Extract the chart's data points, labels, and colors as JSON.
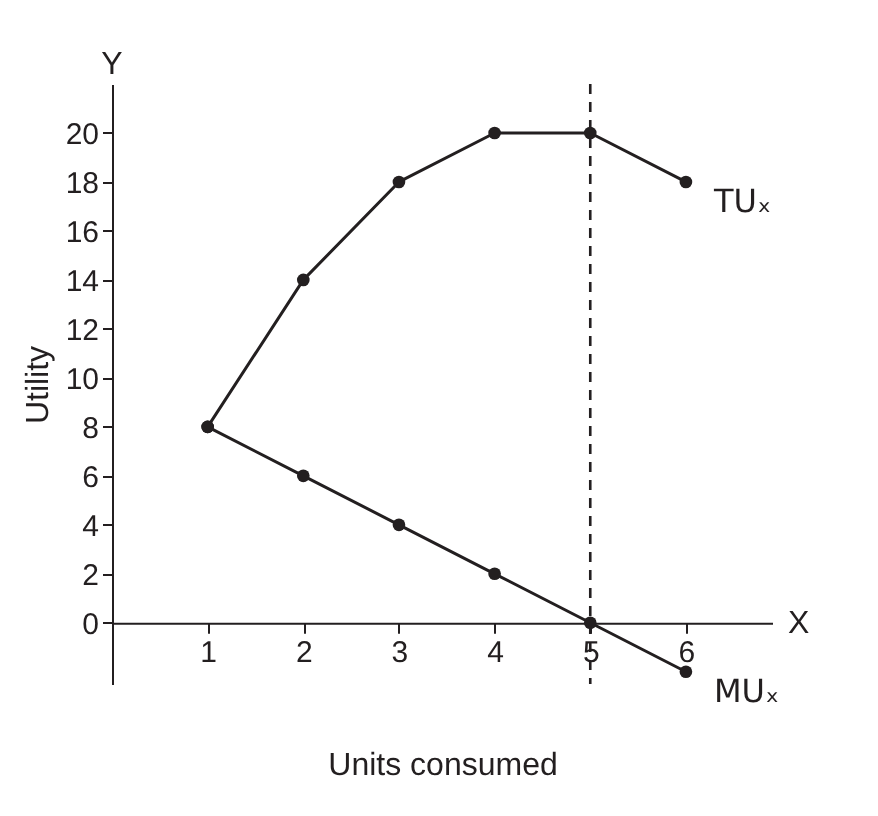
{
  "chart_data": {
    "type": "line",
    "xlabel": "Units consumed",
    "ylabel": "Utility",
    "x": [
      1,
      2,
      3,
      4,
      5,
      6
    ],
    "series": [
      {
        "name": "TUₓ",
        "color": "#231f20",
        "values": [
          8,
          14,
          18,
          20,
          20,
          18
        ]
      },
      {
        "name": "MUₓ",
        "color": "#231f20",
        "values": [
          8,
          6,
          4,
          2,
          0,
          -2
        ]
      }
    ],
    "xlim": [
      0,
      6.9
    ],
    "ylim": [
      -2.5,
      22
    ],
    "xticks": [
      1,
      2,
      3,
      4,
      5,
      6
    ],
    "yticks": [
      0,
      2,
      4,
      6,
      8,
      10,
      12,
      14,
      16,
      18,
      20
    ],
    "ref_lines": [
      {
        "axis": "x",
        "value": 5,
        "line_style": "dashed"
      }
    ],
    "annotations": [
      "Y",
      "X"
    ],
    "marker": "circle",
    "line_style": "solid",
    "grid": false
  }
}
